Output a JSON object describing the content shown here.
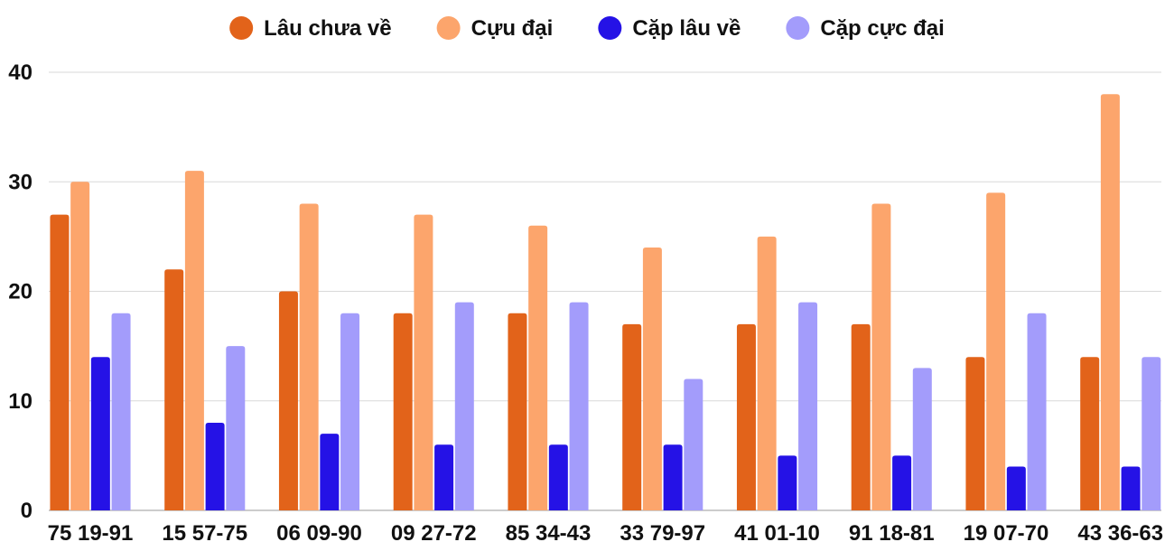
{
  "chart_data": {
    "type": "bar",
    "title": "",
    "xlabel": "",
    "ylabel": "",
    "ylim": [
      0,
      40
    ],
    "yticks": [
      0,
      10,
      20,
      30,
      40
    ],
    "grid": true,
    "legend_position": "top",
    "categories": [
      "75 19-91",
      "15 57-75",
      "06 09-90",
      "09 27-72",
      "85 34-43",
      "33 79-97",
      "41 01-10",
      "91 18-81",
      "19 07-70",
      "43 36-63"
    ],
    "series": [
      {
        "name": "Lâu chưa về",
        "color": "#e2631a",
        "values": [
          27,
          22,
          20,
          18,
          18,
          17,
          17,
          17,
          14,
          14
        ]
      },
      {
        "name": "Cựu đại",
        "color": "#fca56c",
        "values": [
          30,
          31,
          28,
          27,
          26,
          24,
          25,
          28,
          29,
          38
        ]
      },
      {
        "name": "Cặp lâu về",
        "color": "#2512e6",
        "values": [
          14,
          8,
          7,
          6,
          6,
          6,
          5,
          5,
          4,
          4
        ]
      },
      {
        "name": "Cặp cực đại",
        "color": "#a39cfb",
        "values": [
          18,
          15,
          18,
          19,
          19,
          12,
          19,
          13,
          18,
          14
        ]
      }
    ]
  }
}
